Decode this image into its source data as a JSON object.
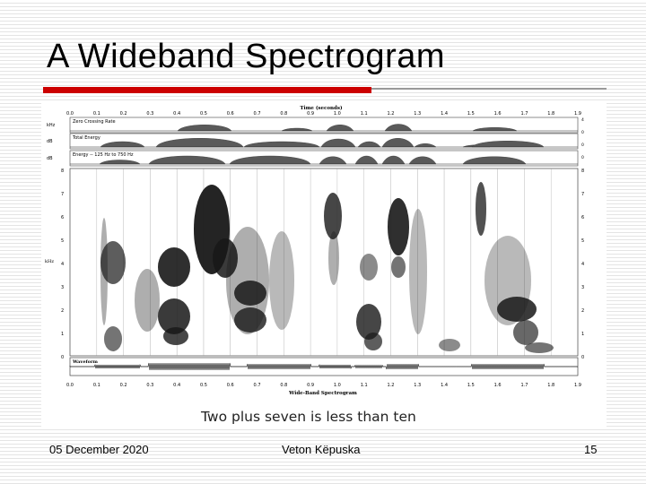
{
  "slide": {
    "title": "A Wideband Spectrogram",
    "caption": "Two plus seven is less than ten",
    "accent_color": "#cc0000"
  },
  "footer": {
    "date": "05 December 2020",
    "author": "Veton Këpuska",
    "page": "15"
  },
  "figure": {
    "top_axis_title": "Time (seconds)",
    "bottom_axis_title": "Wide-Band Spectrogram",
    "time_ticks": [
      "0.0",
      "0.1",
      "0.2",
      "0.3",
      "0.4",
      "0.5",
      "0.6",
      "0.7",
      "0.8",
      "0.9",
      "1.0",
      "1.1",
      "1.2",
      "1.3",
      "1.4",
      "1.5",
      "1.6",
      "1.7",
      "1.8",
      "1.9"
    ],
    "tracks": [
      {
        "label": "Zero Crossing Rate",
        "unit": "kHz"
      },
      {
        "label": "Total Energy",
        "unit": "dB"
      },
      {
        "label": "Energy -- 125 Hz to 750 Hz",
        "unit": "dB"
      }
    ],
    "track_right_ticks": [
      "4",
      "0",
      "0",
      "0"
    ],
    "freq_unit": "kHz",
    "freq_ticks": [
      "8",
      "7",
      "6",
      "5",
      "4",
      "3",
      "2",
      "1",
      "0"
    ],
    "waveform_label": "Waveform"
  }
}
